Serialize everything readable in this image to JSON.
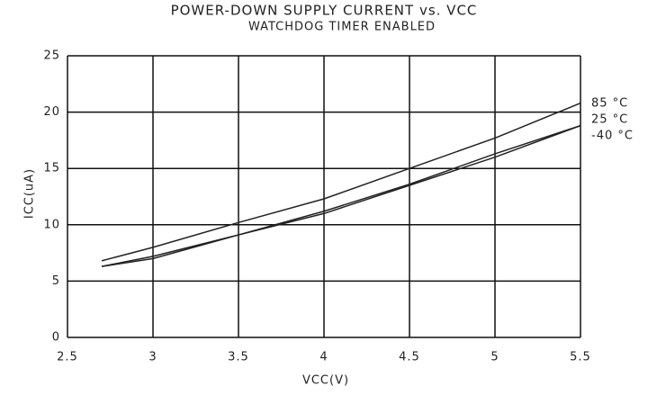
{
  "chart_data": {
    "type": "line",
    "title": "POWER-DOWN SUPPLY CURRENT vs. VCC",
    "subtitle": "WATCHDOG TIMER ENABLED",
    "x_label": "VCC(V)",
    "y_label": "ICC(uA)",
    "x": [
      2.7,
      3.0,
      3.5,
      4.0,
      4.5,
      5.0,
      5.5
    ],
    "series": [
      {
        "name": "85 °C",
        "color": "#222222",
        "values": [
          6.8,
          8.0,
          10.2,
          12.3,
          15.0,
          17.7,
          20.8
        ]
      },
      {
        "name": "25 °C",
        "color": "#222222",
        "values": [
          6.3,
          7.2,
          9.1,
          11.2,
          13.6,
          16.3,
          18.8
        ]
      },
      {
        "name": "-40 °C",
        "color": "#222222",
        "values": [
          6.3,
          7.0,
          9.1,
          11.0,
          13.5,
          16.0,
          18.8
        ]
      }
    ],
    "xlim": [
      2.5,
      5.5
    ],
    "xticks": [
      2.5,
      3,
      3.5,
      4,
      4.5,
      5,
      5.5
    ],
    "ylim": [
      0,
      25
    ],
    "yticks": [
      0,
      5,
      10,
      15,
      20,
      25
    ],
    "grid": true
  }
}
